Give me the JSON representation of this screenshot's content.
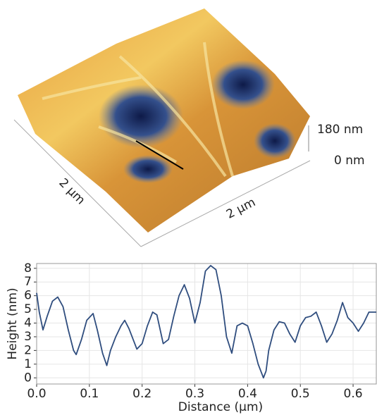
{
  "afm_image": {
    "z_max_label": "180 nm",
    "z_min_label": "0 nm",
    "x_scale_label": "2 µm",
    "y_scale_label": "2 µm"
  },
  "chart_data": {
    "type": "line",
    "x_label": "Distance (μm)",
    "y_label": "Height (nm)",
    "xlim": [
      0,
      0.644
    ],
    "ylim": [
      -0.45,
      8.35
    ],
    "xticks": [
      {
        "value": 0,
        "label": "0.0"
      },
      0.1,
      0.2,
      0.3,
      0.4,
      0.5,
      0.6
    ],
    "yticks": [
      0,
      1,
      2,
      3,
      4,
      5,
      6,
      7,
      8
    ],
    "grid": true,
    "x": [
      0,
      0.005,
      0.012,
      0.02,
      0.03,
      0.04,
      0.05,
      0.06,
      0.07,
      0.075,
      0.085,
      0.095,
      0.107,
      0.115,
      0.125,
      0.133,
      0.14,
      0.15,
      0.16,
      0.167,
      0.175,
      0.19,
      0.2,
      0.21,
      0.22,
      0.228,
      0.24,
      0.25,
      0.26,
      0.27,
      0.28,
      0.29,
      0.3,
      0.31,
      0.32,
      0.33,
      0.34,
      0.35,
      0.36,
      0.37,
      0.38,
      0.39,
      0.4,
      0.41,
      0.42,
      0.43,
      0.435,
      0.44,
      0.45,
      0.46,
      0.47,
      0.48,
      0.49,
      0.5,
      0.51,
      0.52,
      0.53,
      0.54,
      0.55,
      0.56,
      0.57,
      0.58,
      0.59,
      0.6,
      0.61,
      0.62,
      0.63,
      0.644
    ],
    "series": [
      {
        "color": "#2f4d7e",
        "values": [
          6.2,
          4.8,
          3.5,
          4.5,
          5.6,
          5.9,
          5.2,
          3.5,
          2.0,
          1.7,
          2.8,
          4.2,
          4.7,
          3.5,
          1.8,
          0.9,
          2.0,
          3.0,
          3.8,
          4.2,
          3.6,
          2.1,
          2.5,
          3.8,
          4.8,
          4.6,
          2.5,
          2.8,
          4.5,
          6.0,
          6.8,
          5.8,
          4.0,
          5.5,
          7.8,
          8.2,
          7.9,
          6.0,
          3.0,
          1.8,
          3.8,
          4.0,
          3.8,
          2.5,
          1.0,
          0.0,
          0.5,
          2.0,
          3.5,
          4.1,
          4.0,
          3.2,
          2.6,
          3.8,
          4.4,
          4.5,
          4.8,
          3.8,
          2.6,
          3.2,
          4.2,
          5.5,
          4.4,
          4.0,
          3.4,
          4.0,
          4.8,
          4.8
        ]
      }
    ]
  }
}
